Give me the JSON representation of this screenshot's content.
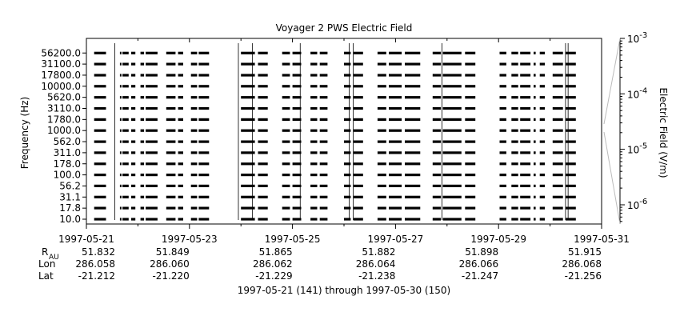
{
  "chart_data": {
    "type": "heatmap",
    "title": "Voyager 2 PWS Electric Field",
    "ylabel": "Frequency (Hz)",
    "colorbar_label": "Electric Field (V/m)",
    "colorbar_scale": "log",
    "colorbar_ticks": [
      {
        "base": "10",
        "exp": "-3",
        "value": 0.001
      },
      {
        "base": "10",
        "exp": "-4",
        "value": 0.0001
      },
      {
        "base": "10",
        "exp": "-5",
        "value": 1e-05
      },
      {
        "base": "10",
        "exp": "-6",
        "value": 1e-06
      }
    ],
    "colorbar_range": [
      4.5e-07,
      0.001
    ],
    "frequency_channels": [
      "10.0",
      "17.8",
      "31.1",
      "56.2",
      "100.0",
      "178.0",
      "311.0",
      "562.0",
      "1000.0",
      "1780.0",
      "3110.0",
      "5620.0",
      "10000.0",
      "17800.0",
      "31100.0",
      "56200.0"
    ],
    "y_tick_labels": [
      "56200.0",
      "31100.0",
      "17800.0",
      "10000.0",
      "5620.0",
      "3110.0",
      "1780.0",
      "1000.0",
      "562.0",
      "311.0",
      "178.0",
      "100.0",
      "56.2",
      "31.1",
      "17.8",
      "10.0"
    ],
    "x_range_days": [
      "1997-05-21",
      "1997-05-31"
    ],
    "x_tick_labels": [
      "1997-05-21",
      "1997-05-23",
      "1997-05-25",
      "1997-05-27",
      "1997-05-29",
      "1997-05-31"
    ],
    "data_intervals_days": [
      [
        0.15,
        0.38
      ],
      [
        0.65,
        0.68
      ],
      [
        0.7,
        0.82
      ],
      [
        0.87,
        0.95
      ],
      [
        1.05,
        1.12
      ],
      [
        1.15,
        1.38
      ],
      [
        1.55,
        1.73
      ],
      [
        1.78,
        1.88
      ],
      [
        2.03,
        2.15
      ],
      [
        2.18,
        2.38
      ],
      [
        3.0,
        3.27
      ],
      [
        3.33,
        3.52
      ],
      [
        3.8,
        3.95
      ],
      [
        4.0,
        4.17
      ],
      [
        4.35,
        4.48
      ],
      [
        4.53,
        4.68
      ],
      [
        5.0,
        5.13
      ],
      [
        5.18,
        5.37
      ],
      [
        5.65,
        5.82
      ],
      [
        5.87,
        6.12
      ],
      [
        6.18,
        6.48
      ],
      [
        6.72,
        6.88
      ],
      [
        6.92,
        7.28
      ],
      [
        7.35,
        7.55
      ],
      [
        8.02,
        8.15
      ],
      [
        8.25,
        8.38
      ],
      [
        8.42,
        8.62
      ],
      [
        8.68,
        8.72
      ],
      [
        8.8,
        8.9
      ],
      [
        9.05,
        9.25
      ],
      [
        9.3,
        9.5
      ]
    ],
    "spike_days": [
      0.55,
      2.95,
      3.22,
      4.15,
      5.1,
      5.18,
      6.9,
      9.3,
      9.35
    ]
  },
  "ephemeris": {
    "rows": [
      {
        "label": "R",
        "label_sub": "AU",
        "values": [
          "51.832",
          "51.849",
          "51.865",
          "51.882",
          "51.898",
          "51.915"
        ]
      },
      {
        "label": "Lon",
        "label_sub": "",
        "values": [
          "286.058",
          "286.060",
          "286.062",
          "286.064",
          "286.066",
          "286.068"
        ]
      },
      {
        "label": "Lat",
        "label_sub": "",
        "values": [
          "-21.212",
          "-21.220",
          "-21.229",
          "-21.238",
          "-21.247",
          "-21.256"
        ]
      }
    ]
  },
  "footer": "1997-05-21 (141) through 1997-05-30 (150)",
  "colors": {
    "ink": "#000000",
    "connector": "#bbbbbb",
    "grid": "#000000"
  }
}
